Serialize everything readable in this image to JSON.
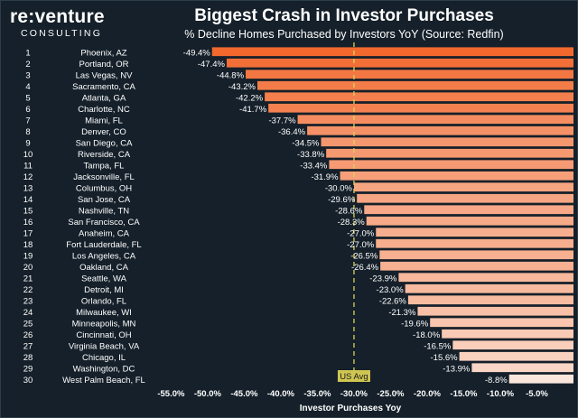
{
  "logo": {
    "brand": "re:venture",
    "sub": "CONSULTING"
  },
  "chart_data": {
    "type": "bar",
    "orientation": "horizontal",
    "title": "Biggest Crash in Investor Purchases",
    "subtitle": "% Decline Homes Purchased by Investors YoY (Source: Redfin)",
    "xlabel": "Investor Purchases Yoy",
    "xlim": [
      -0.59,
      0.0
    ],
    "xticks": [
      -0.55,
      -0.5,
      -0.45,
      -0.4,
      -0.35,
      -0.3,
      -0.25,
      -0.2,
      -0.15,
      -0.1,
      -0.05
    ],
    "xtick_labels": [
      "-55.0%",
      "-50.0%",
      "-45.0%",
      "-40.0%",
      "-35.0%",
      "-30.0%",
      "-25.0%",
      "-20.0%",
      "-15.0%",
      "-10.0%",
      "-5.0%"
    ],
    "reference_line": {
      "value": -0.3,
      "label": "US Avg"
    },
    "colors": {
      "strong": "#f2692e",
      "light": "#fbe6dc",
      "background": "#15202a",
      "avg_line": "#d9d35a"
    },
    "ranks": [
      "1",
      "2",
      "3",
      "4",
      "5",
      "6",
      "7",
      "8",
      "9",
      "10",
      "11",
      "12",
      "13",
      "14",
      "15",
      "16",
      "17",
      "18",
      "19",
      "20",
      "21",
      "22",
      "23",
      "24",
      "25",
      "26",
      "27",
      "28",
      "29",
      "30"
    ],
    "categories": [
      "Phoenix, AZ",
      "Portland, OR",
      "Las Vegas, NV",
      "Sacramento, CA",
      "Atlanta, GA",
      "Charlotte, NC",
      "Miami, FL",
      "Denver, CO",
      "San Diego, CA",
      "Riverside, CA",
      "Tampa, FL",
      "Jacksonville, FL",
      "Columbus, OH",
      "San Jose, CA",
      "Nashville, TN",
      "San Francisco, CA",
      "Anaheim, CA",
      "Fort Lauderdale, FL",
      "Los Angeles, CA",
      "Oakland, CA",
      "Seattle, WA",
      "Detroit, MI",
      "Orlando, FL",
      "Milwaukee, WI",
      "Minneapolis, MN",
      "Cincinnati, OH",
      "Virginia Beach, VA",
      "Chicago, IL",
      "Washington, DC",
      "West Palm Beach, FL"
    ],
    "values": [
      -0.494,
      -0.474,
      -0.448,
      -0.432,
      -0.422,
      -0.417,
      -0.377,
      -0.364,
      -0.345,
      -0.338,
      -0.334,
      -0.319,
      -0.3,
      -0.296,
      -0.286,
      -0.283,
      -0.27,
      -0.27,
      -0.265,
      -0.264,
      -0.239,
      -0.23,
      -0.226,
      -0.213,
      -0.196,
      -0.18,
      -0.165,
      -0.156,
      -0.139,
      -0.088
    ],
    "value_labels": [
      "-49.4%",
      "-47.4%",
      "-44.8%",
      "-43.2%",
      "-42.2%",
      "-41.7%",
      "-37.7%",
      "-36.4%",
      "-34.5%",
      "-33.8%",
      "-33.4%",
      "-31.9%",
      "-30.0%",
      "-29.6%",
      "-28.6%",
      "-28.3%",
      "-27.0%",
      "-27.0%",
      "-26.5%",
      "-26.4%",
      "-23.9%",
      "-23.0%",
      "-22.6%",
      "-21.3%",
      "-19.6%",
      "-18.0%",
      "-16.5%",
      "-15.6%",
      "-13.9%",
      "-8.8%"
    ]
  }
}
